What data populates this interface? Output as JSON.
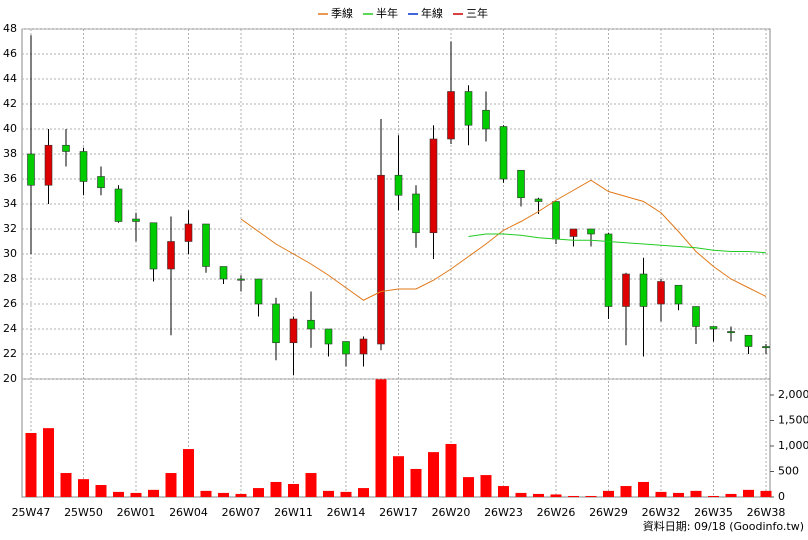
{
  "chart_data": [
    {
      "type": "candlestick",
      "open": [
        38,
        35.5,
        38.7,
        38.2,
        36.2,
        35.2,
        32.8,
        32.5,
        28.8,
        31,
        32.4,
        29,
        28,
        28,
        26,
        22.9,
        24.7,
        24,
        23,
        22,
        22.8,
        36.3,
        34.8,
        31.7,
        39.2,
        43,
        41.5,
        40.2,
        36.7,
        34.4,
        34.2,
        31.4,
        32,
        31.6,
        25.8,
        28.4,
        26,
        27.5,
        25.8,
        24.2,
        23.8,
        23.5,
        22.6
      ],
      "high": [
        47.5,
        40,
        40,
        38.5,
        37,
        35.5,
        33.3,
        32.5,
        33,
        33.5,
        32.4,
        29,
        28.3,
        28,
        26.5,
        25,
        27,
        24,
        23,
        23.4,
        40.8,
        39.5,
        35.5,
        40.3,
        47,
        43.5,
        43,
        40.3,
        36.7,
        34.5,
        34.2,
        32,
        32,
        31.7,
        28.5,
        29.7,
        28,
        27.5,
        25.8,
        24.2,
        24.2,
        23.5,
        22.8
      ],
      "low": [
        30,
        34,
        37,
        34.7,
        34.7,
        32.5,
        31,
        27.8,
        23.5,
        30,
        28.5,
        27.6,
        27,
        25,
        21.5,
        20.3,
        22.5,
        21.8,
        21,
        21,
        22.3,
        33.5,
        30.5,
        29.6,
        38.8,
        38.7,
        39,
        35.7,
        33.8,
        33.2,
        30.8,
        30.6,
        30.6,
        24.8,
        22.7,
        21.8,
        24.6,
        25.5,
        22.8,
        23,
        23,
        22,
        22
      ],
      "close": [
        35.5,
        38.7,
        38.2,
        35.8,
        35.3,
        32.6,
        32.6,
        28.8,
        31,
        32.4,
        29,
        28,
        27.9,
        26,
        22.9,
        24.8,
        24,
        22.8,
        22,
        23.2,
        36.3,
        34.7,
        31.7,
        39.2,
        43,
        40.3,
        40,
        36,
        34.5,
        34.2,
        31.2,
        32,
        31.6,
        25.8,
        28.4,
        25.8,
        27.8,
        26,
        24.2,
        24,
        23.7,
        22.6,
        22.5
      ],
      "up_color": "#dd0000",
      "down_color": "#00cc00",
      "series": [
        {
          "name": "季線",
          "color": "#e07818",
          "values": [
            null,
            null,
            null,
            null,
            null,
            null,
            null,
            null,
            null,
            null,
            null,
            null,
            32.8,
            31.8,
            30.8,
            30,
            29.2,
            28.3,
            27.3,
            26.3,
            27,
            27.2,
            27.2,
            27.9,
            28.8,
            29.8,
            30.8,
            31.9,
            32.6,
            33.4,
            34.3,
            35.1,
            35.9,
            35,
            34.6,
            34.2,
            33.3,
            31.8,
            30.2,
            29,
            28,
            27.3,
            26.6
          ]
        },
        {
          "name": "半年",
          "color": "#22cc22",
          "values": [
            null,
            null,
            null,
            null,
            null,
            null,
            null,
            null,
            null,
            null,
            null,
            null,
            null,
            null,
            null,
            null,
            null,
            null,
            null,
            null,
            null,
            null,
            null,
            null,
            null,
            31.4,
            31.6,
            31.6,
            31.5,
            31.3,
            31.2,
            31.1,
            31.1,
            31,
            30.9,
            30.8,
            30.7,
            30.6,
            30.5,
            30.3,
            30.2,
            30.2,
            30.1
          ]
        },
        {
          "name": "年線",
          "color": "#0033cc",
          "values": [
            null,
            null,
            null,
            null,
            null,
            null,
            null,
            null,
            null,
            null,
            null,
            null,
            null,
            null,
            null,
            null,
            null,
            null,
            null,
            null,
            null,
            null,
            null,
            null,
            null,
            null,
            null,
            null,
            null,
            null,
            null,
            null,
            null,
            null,
            null,
            null,
            null,
            null,
            null,
            null,
            null,
            null,
            null
          ]
        },
        {
          "name": "三年",
          "color": "#cc0000",
          "values": [
            null,
            null,
            null,
            null,
            null,
            null,
            null,
            null,
            null,
            null,
            null,
            null,
            null,
            null,
            null,
            null,
            null,
            null,
            null,
            null,
            null,
            null,
            null,
            null,
            null,
            null,
            null,
            null,
            null,
            null,
            null,
            null,
            null,
            null,
            null,
            null,
            null,
            null,
            null,
            null,
            null,
            null,
            null
          ]
        }
      ],
      "ylim": [
        20,
        48
      ],
      "yticks": [
        20,
        22,
        24,
        26,
        28,
        30,
        32,
        34,
        36,
        38,
        40,
        42,
        44,
        46,
        48
      ],
      "grid": true
    },
    {
      "type": "bar",
      "categories": [
        "25W47",
        null,
        null,
        "25W50",
        null,
        null,
        "26W01",
        null,
        null,
        "26W04",
        null,
        null,
        "26W07",
        null,
        null,
        "26W11",
        null,
        null,
        "26W14",
        null,
        null,
        "26W17",
        null,
        null,
        "26W20",
        null,
        null,
        "26W23",
        null,
        null,
        "26W26",
        null,
        null,
        "26W29",
        null,
        null,
        "26W32",
        null,
        null,
        "26W35",
        null,
        null,
        "26W38"
      ],
      "values": [
        1255,
        1350,
        470,
        350,
        235,
        100,
        80,
        140,
        470,
        940,
        120,
        80,
        60,
        175,
        295,
        255,
        470,
        120,
        100,
        175,
        2310,
        800,
        550,
        880,
        1040,
        390,
        430,
        215,
        80,
        60,
        50,
        20,
        20,
        120,
        215,
        295,
        100,
        80,
        120,
        20,
        60,
        140,
        120
      ],
      "color": "#ff0000",
      "ylim": [
        0,
        2314
      ],
      "yticks": [
        0,
        500,
        {
          "value": 1000,
          "label": "1,000"
        },
        {
          "value": 1500,
          "label": "1,500"
        },
        {
          "value": 2000,
          "label": "2,000"
        }
      ],
      "footnote": "資料日期: 09/18  (Goodinfo.tw)"
    }
  ]
}
